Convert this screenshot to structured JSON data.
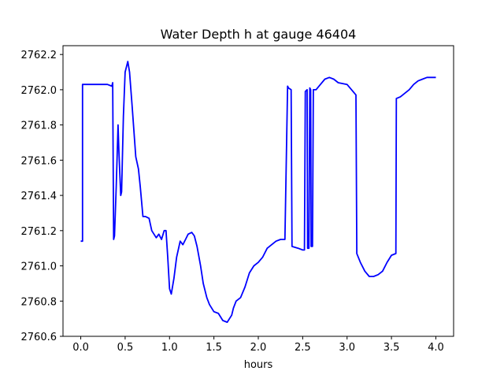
{
  "chart_data": {
    "type": "line",
    "title": "Water Depth h at gauge 46404",
    "xlabel": "hours",
    "ylabel": "",
    "xlim": [
      -0.2,
      4.2
    ],
    "ylim": [
      2760.6,
      2762.25
    ],
    "xticks": [
      0.0,
      0.5,
      1.0,
      1.5,
      2.0,
      2.5,
      3.0,
      3.5,
      4.0
    ],
    "xtick_labels": [
      "0.0",
      "0.5",
      "1.0",
      "1.5",
      "2.0",
      "2.5",
      "3.0",
      "3.5",
      "4.0"
    ],
    "yticks": [
      2760.6,
      2760.8,
      2761.0,
      2761.2,
      2761.4,
      2761.6,
      2761.8,
      2762.0,
      2762.2
    ],
    "ytick_labels": [
      "2760.6",
      "2760.8",
      "2761.0",
      "2761.2",
      "2761.4",
      "2761.6",
      "2761.8",
      "2762.0",
      "2762.2"
    ],
    "grid": false,
    "legend": "none",
    "line_color": "#0000ff",
    "series": [
      {
        "x": [
          0.0,
          0.02,
          0.02,
          0.3,
          0.35,
          0.36,
          0.37,
          0.38,
          0.4,
          0.42,
          0.43,
          0.45,
          0.46,
          0.48,
          0.5,
          0.53,
          0.55,
          0.58,
          0.62,
          0.65,
          0.67,
          0.7,
          0.73,
          0.77,
          0.8,
          0.85,
          0.88,
          0.91,
          0.94,
          0.96,
          0.98,
          1.0,
          1.02,
          1.05,
          1.08,
          1.12,
          1.15,
          1.18,
          1.21,
          1.25,
          1.28,
          1.31,
          1.35,
          1.38,
          1.42,
          1.45,
          1.5,
          1.55,
          1.6,
          1.65,
          1.7,
          1.72,
          1.75,
          1.8,
          1.85,
          1.9,
          1.95,
          2.0,
          2.05,
          2.1,
          2.15,
          2.2,
          2.25,
          2.3,
          2.33,
          2.34,
          2.37,
          2.38,
          2.45,
          2.5,
          2.52,
          2.53,
          2.55,
          2.555,
          2.57,
          2.58,
          2.59,
          2.595,
          2.61,
          2.62,
          2.65,
          2.7,
          2.75,
          2.8,
          2.85,
          2.9,
          3.0,
          3.05,
          3.1,
          3.11,
          3.15,
          3.2,
          3.25,
          3.3,
          3.35,
          3.4,
          3.45,
          3.5,
          3.55,
          3.555,
          3.6,
          3.65,
          3.7,
          3.75,
          3.8,
          3.85,
          3.9,
          3.95,
          4.0
        ],
        "y": [
          2761.14,
          2761.14,
          2762.03,
          2762.03,
          2762.02,
          2762.04,
          2761.15,
          2761.17,
          2761.45,
          2761.8,
          2761.65,
          2761.4,
          2761.42,
          2761.85,
          2762.1,
          2762.16,
          2762.1,
          2761.9,
          2761.62,
          2761.55,
          2761.45,
          2761.28,
          2761.28,
          2761.27,
          2761.2,
          2761.16,
          2761.18,
          2761.15,
          2761.2,
          2761.2,
          2761.05,
          2760.87,
          2760.84,
          2760.93,
          2761.05,
          2761.14,
          2761.12,
          2761.15,
          2761.18,
          2761.19,
          2761.17,
          2761.11,
          2761.0,
          2760.9,
          2760.82,
          2760.78,
          2760.74,
          2760.73,
          2760.69,
          2760.68,
          2760.72,
          2760.76,
          2760.8,
          2760.82,
          2760.88,
          2760.96,
          2761.0,
          2761.02,
          2761.05,
          2761.1,
          2761.12,
          2761.14,
          2761.15,
          2761.15,
          2762.02,
          2762.01,
          2762.0,
          2761.11,
          2761.1,
          2761.09,
          2761.09,
          2761.99,
          2762.0,
          2761.1,
          2761.1,
          2762.01,
          2762.0,
          2761.11,
          2761.11,
          2762.0,
          2762.0,
          2762.03,
          2762.06,
          2762.07,
          2762.06,
          2762.04,
          2762.03,
          2762.0,
          2761.97,
          2761.07,
          2761.02,
          2760.97,
          2760.94,
          2760.94,
          2760.95,
          2760.97,
          2761.02,
          2761.06,
          2761.07,
          2761.95,
          2761.96,
          2761.98,
          2762.0,
          2762.03,
          2762.05,
          2762.06,
          2762.07,
          2762.07,
          2762.07
        ]
      }
    ]
  }
}
